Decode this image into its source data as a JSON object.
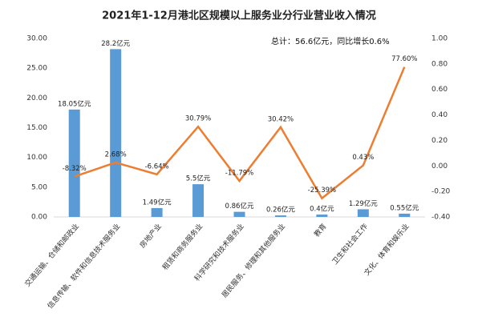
{
  "chart_data": {
    "type": "bar_line",
    "title": "2021年1-12月港北区规模以上服务业分行业营业收入情况",
    "annotation": "总计：56.6亿元，同比增长0.6%",
    "categories": [
      "交通运输、仓储和邮政业",
      "信息传输、软件和信息技术服务业",
      "房地产业",
      "租赁和商务服务业",
      "科学研究和技术服务业",
      "居民服务、修理和其他服务业",
      "教育",
      "卫生和社会工作",
      "文化、体育和娱乐业"
    ],
    "series": [
      {
        "name": "营业收入",
        "color": "#5b9bd5",
        "values": [
          18.05,
          28.2,
          1.49,
          5.5,
          0.86,
          0.26,
          0.4,
          1.29,
          0.55
        ],
        "value_labels": [
          "18.05亿元",
          "28.2亿元",
          "1.49亿元",
          "5.5亿元",
          "0.86亿元",
          "0.26亿元",
          "0.4亿元",
          "1.29亿元",
          "0.55亿元"
        ]
      },
      {
        "name": "同比增长",
        "color": "#ed7d31",
        "axis": "y2",
        "values": [
          -0.0832,
          0.0268,
          -0.0664,
          0.3079,
          -0.1179,
          0.3042,
          -0.2539,
          0.0043,
          0.776
        ],
        "value_labels": [
          "-8.32%",
          "2.68%",
          "-6.64%",
          "30.79%",
          "-11.79%",
          "30.42%",
          "-25.39%",
          "0.43%",
          "77.60%"
        ]
      }
    ],
    "ylim": [
      0,
      30
    ],
    "yticks": [
      {
        "value": 0,
        "label": "0.00"
      },
      {
        "value": 5,
        "label": "5.00"
      },
      {
        "value": 10,
        "label": "10.00"
      },
      {
        "value": 15,
        "label": "15.00"
      },
      {
        "value": 20,
        "label": "20.00"
      },
      {
        "value": 25,
        "label": "25.00"
      },
      {
        "value": 30,
        "label": "30.00"
      }
    ],
    "y2lim": [
      -0.4,
      1.0
    ],
    "y2ticks": [
      {
        "value": -0.4,
        "label": "-0.40"
      },
      {
        "value": -0.2,
        "label": "-0.20"
      },
      {
        "value": 0,
        "label": "0.00"
      },
      {
        "value": 0.2,
        "label": "0.20"
      },
      {
        "value": 0.4,
        "label": "0.40"
      },
      {
        "value": 0.6,
        "label": "0.60"
      },
      {
        "value": 0.8,
        "label": "0.80"
      },
      {
        "value": 1.0,
        "label": "1.00"
      }
    ]
  }
}
